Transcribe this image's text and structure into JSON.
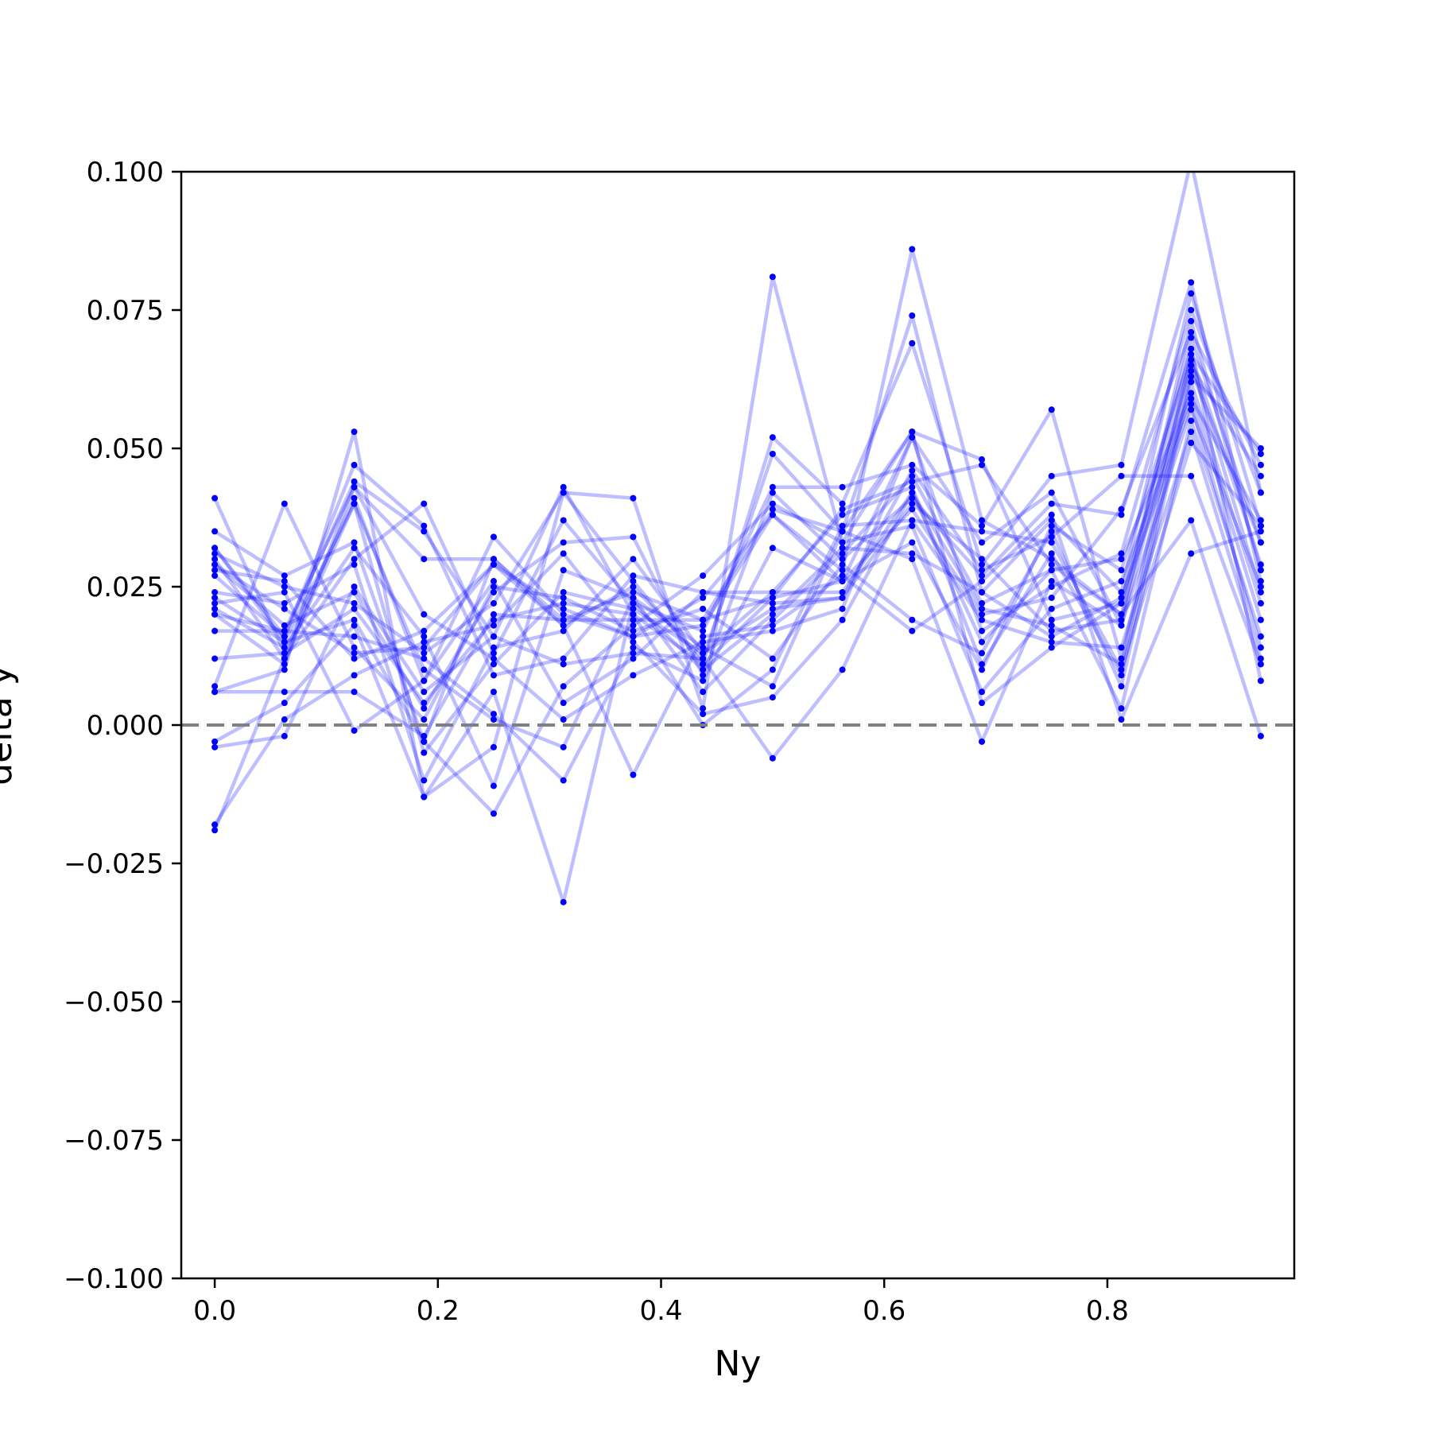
{
  "chart_data": {
    "type": "line",
    "title": "",
    "xlabel": "Ny",
    "ylabel": "delta y",
    "xlim": [
      -0.03,
      0.9675
    ],
    "ylim": [
      -0.1,
      0.1
    ],
    "xticks": [
      0.0,
      0.2,
      0.4,
      0.6,
      0.8
    ],
    "xtick_labels": [
      "0.0",
      "0.2",
      "0.4",
      "0.6",
      "0.8"
    ],
    "yticks": [
      -0.1,
      -0.075,
      -0.05,
      -0.025,
      0.0,
      0.025,
      0.05,
      0.075,
      0.1
    ],
    "ytick_labels": [
      "−0.100",
      "−0.075",
      "−0.050",
      "−0.025",
      "0.000",
      "0.025",
      "0.050",
      "0.075",
      "0.100"
    ],
    "reference_line": {
      "y": 0.0,
      "style": "dashed",
      "color": "#808080"
    },
    "grid": false,
    "line_color": "#0000ff",
    "line_alpha": 0.25,
    "marker_color": "#0000ff",
    "x": [
      0.0,
      0.0625,
      0.125,
      0.1875,
      0.25,
      0.3125,
      0.375,
      0.4375,
      0.5,
      0.5625,
      0.625,
      0.6875,
      0.75,
      0.8125,
      0.875,
      0.9375
    ],
    "series": [
      {
        "values": [
          0.041,
          0.013,
          0.041,
          0.008,
          0.034,
          0.02,
          0.016,
          0.018,
          0.038,
          0.028,
          0.086,
          0.037,
          0.03,
          0.02,
          0.065,
          0.045
        ]
      },
      {
        "values": [
          0.035,
          0.027,
          0.033,
          -0.003,
          0.03,
          0.018,
          0.025,
          0.012,
          0.049,
          0.035,
          0.074,
          0.024,
          0.037,
          0.024,
          0.078,
          0.036
        ]
      },
      {
        "values": [
          0.032,
          0.016,
          0.044,
          0.035,
          0.016,
          0.043,
          0.02,
          0.011,
          0.052,
          0.04,
          0.069,
          0.029,
          0.045,
          0.047,
          0.102,
          0.042
        ]
      },
      {
        "values": [
          0.031,
          0.025,
          0.022,
          0.013,
          0.022,
          0.042,
          0.041,
          0.003,
          0.081,
          0.033,
          0.053,
          0.048,
          0.019,
          0.022,
          0.07,
          0.033
        ]
      },
      {
        "values": [
          0.03,
          0.012,
          0.03,
          0.04,
          0.013,
          0.037,
          0.022,
          0.017,
          0.043,
          0.043,
          0.047,
          0.036,
          0.057,
          0.012,
          0.067,
          0.049
        ]
      },
      {
        "values": [
          0.029,
          0.018,
          0.024,
          0.003,
          0.024,
          0.033,
          0.034,
          0.009,
          0.042,
          0.03,
          0.041,
          0.027,
          0.04,
          0.038,
          0.08,
          0.026
        ]
      },
      {
        "values": [
          0.028,
          0.026,
          0.012,
          0.017,
          0.029,
          0.021,
          0.016,
          0.023,
          0.038,
          0.026,
          0.052,
          0.017,
          0.025,
          0.031,
          0.075,
          0.042
        ]
      },
      {
        "values": [
          0.027,
          0.016,
          0.047,
          0.036,
          0.009,
          0.012,
          0.027,
          0.024,
          0.024,
          0.038,
          0.043,
          0.011,
          0.031,
          0.009,
          0.063,
          0.05
        ]
      },
      {
        "values": [
          0.024,
          0.022,
          0.029,
          -0.01,
          0.014,
          0.017,
          0.03,
          0.013,
          0.021,
          0.023,
          0.04,
          0.03,
          0.017,
          0.019,
          0.073,
          0.028
        ]
      },
      {
        "values": [
          0.023,
          0.015,
          0.019,
          -0.003,
          -0.016,
          0.007,
          0.018,
          0.027,
          0.04,
          0.033,
          0.036,
          0.006,
          0.021,
          0.026,
          0.059,
          0.037
        ]
      },
      {
        "values": [
          0.021,
          0.014,
          0.032,
          0.016,
          -0.011,
          0.028,
          0.023,
          0.006,
          0.019,
          0.031,
          0.045,
          0.022,
          0.028,
          0.003,
          0.055,
          0.016
        ]
      },
      {
        "values": [
          0.02,
          0.011,
          0.043,
          0.02,
          0.012,
          0.001,
          0.009,
          0.015,
          0.017,
          0.021,
          0.052,
          0.033,
          0.042,
          0.018,
          0.066,
          0.024
        ]
      },
      {
        "values": [
          0.017,
          0.017,
          0.016,
          0.012,
          0.002,
          -0.01,
          0.014,
          0.008,
          0.032,
          0.026,
          0.039,
          0.02,
          0.023,
          0.039,
          0.071,
          0.047
        ]
      },
      {
        "values": [
          0.012,
          0.013,
          0.021,
          0.004,
          0.019,
          0.022,
          0.02,
          0.0,
          0.01,
          0.036,
          0.037,
          0.035,
          0.033,
          0.01,
          0.051,
          0.036
        ]
      },
      {
        "values": [
          0.007,
          0.04,
          0.014,
          0.001,
          0.025,
          0.023,
          0.017,
          0.021,
          0.012,
          0.029,
          0.019,
          0.013,
          0.035,
          0.007,
          0.062,
          0.022
        ]
      },
      {
        "values": [
          0.006,
          0.006,
          0.006,
          -0.002,
          0.02,
          0.019,
          0.024,
          0.019,
          0.023,
          0.026,
          0.033,
          0.01,
          0.036,
          0.028,
          0.067,
          0.029
        ]
      },
      {
        "values": [
          -0.003,
          0.004,
          0.018,
          -0.013,
          0.006,
          -0.032,
          0.022,
          0.01,
          0.02,
          0.032,
          0.031,
          0.024,
          0.016,
          0.023,
          0.058,
          0.014
        ]
      },
      {
        "values": [
          -0.004,
          -0.002,
          0.025,
          0.006,
          0.016,
          0.011,
          0.013,
          0.012,
          -0.006,
          0.01,
          0.037,
          0.019,
          0.015,
          0.014,
          0.053,
          0.012
        ]
      },
      {
        "values": [
          -0.018,
          0.001,
          0.009,
          0.015,
          0.018,
          0.031,
          0.015,
          0.002,
          0.005,
          0.019,
          0.042,
          0.015,
          0.028,
          0.03,
          0.06,
          0.019
        ]
      },
      {
        "values": [
          -0.019,
          0.012,
          0.04,
          0.01,
          0.001,
          -0.004,
          0.023,
          0.014,
          0.007,
          0.035,
          0.03,
          -0.003,
          0.026,
          0.018,
          0.057,
          0.025
        ]
      },
      {
        "values": [
          0.022,
          0.024,
          -0.001,
          0.008,
          0.026,
          0.004,
          0.012,
          0.024,
          0.022,
          0.023,
          0.046,
          0.028,
          0.034,
          0.045,
          0.045,
          0.011
        ]
      },
      {
        "values": [
          0.029,
          0.021,
          0.013,
          0.014,
          0.029,
          0.018,
          -0.009,
          0.016,
          0.018,
          0.027,
          0.017,
          0.026,
          0.038,
          0.001,
          0.031,
          0.035
        ]
      },
      {
        "values": [
          0.02,
          0.017,
          0.043,
          0.03,
          0.03,
          0.019,
          0.019,
          0.019,
          0.039,
          0.035,
          0.053,
          0.004,
          0.014,
          0.022,
          0.068,
          0.008
        ]
      },
      {
        "values": [
          0.032,
          0.015,
          0.04,
          -0.005,
          0.011,
          0.024,
          0.021,
          0.013,
          0.024,
          0.024,
          0.042,
          0.021,
          0.018,
          0.011,
          0.064,
          0.033
        ]
      },
      {
        "values": [
          0.006,
          0.01,
          0.053,
          -0.013,
          -0.004,
          0.042,
          0.026,
          0.011,
          0.023,
          0.039,
          0.044,
          0.047,
          0.029,
          0.02,
          0.037,
          -0.002
        ]
      }
    ]
  }
}
